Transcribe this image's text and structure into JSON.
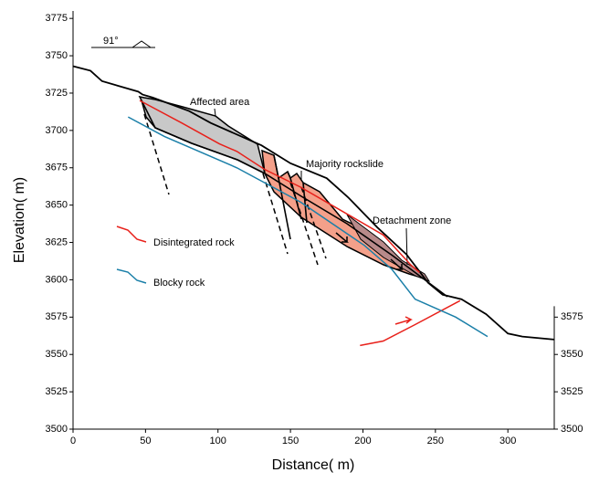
{
  "chart_data": {
    "type": "line",
    "xlabel": "Distance( m)",
    "ylabel": "Elevation( m)",
    "xlim": [
      0,
      332
    ],
    "xticks": [
      0,
      50,
      100,
      150,
      200,
      250,
      300
    ],
    "ylim": [
      3500,
      3780
    ],
    "yticks": [
      3500,
      3525,
      3550,
      3575,
      3600,
      3625,
      3650,
      3675,
      3700,
      3725,
      3750,
      3775
    ],
    "y2lim": [
      3500,
      3780
    ],
    "y2ticks": [
      3500,
      3525,
      3550,
      3575
    ],
    "annotations": [
      "91°",
      "Affected area",
      "Majority rockslide",
      "Detachment zone"
    ],
    "series": [
      {
        "color": "#000000",
        "x": [
          0,
          12,
          20,
          45,
          48,
          55,
          80,
          95,
          130,
          150,
          175,
          190,
          210,
          230,
          245,
          255,
          268,
          285,
          300,
          310,
          332
        ],
        "values": [
          3743,
          3740,
          3733,
          3726,
          3724,
          3722,
          3713,
          3705,
          3690,
          3678,
          3668,
          3655,
          3635,
          3617,
          3598,
          3590,
          3587,
          3577,
          3564,
          3562,
          3560
        ]
      },
      {
        "name": "Disintegrated rock",
        "color": "#e8201a",
        "x": [
          46,
          75,
          101,
          113,
          132,
          157,
          182,
          214,
          233,
          239,
          null,
          198,
          214,
          236,
          267
        ],
        "values": [
          3720,
          3705,
          3691,
          3686,
          3674,
          3662,
          3648,
          3630,
          3610,
          3605,
          null,
          3556,
          3559,
          3570,
          3586
        ]
      },
      {
        "name": "Blocky rock",
        "color": "#1a7fa8",
        "x": [
          38,
          63,
          113,
          157,
          201,
          220,
          236,
          264,
          286
        ],
        "values": [
          3709,
          3696,
          3675,
          3652,
          3623,
          3607,
          3587,
          3575,
          3562
        ]
      }
    ]
  }
}
